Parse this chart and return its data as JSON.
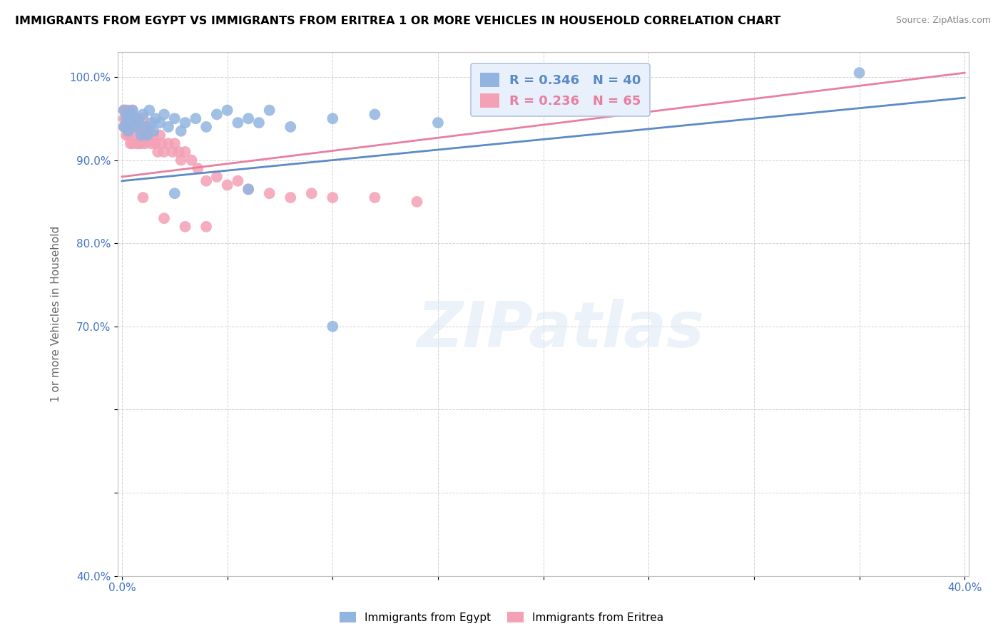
{
  "title": "IMMIGRANTS FROM EGYPT VS IMMIGRANTS FROM ERITREA 1 OR MORE VEHICLES IN HOUSEHOLD CORRELATION CHART",
  "source": "Source: ZipAtlas.com",
  "ylabel": "1 or more Vehicles in Household",
  "xlim": [
    -0.002,
    0.402
  ],
  "ylim": [
    0.4,
    1.03
  ],
  "xticks": [
    0.0,
    0.05,
    0.1,
    0.15,
    0.2,
    0.25,
    0.3,
    0.35,
    0.4
  ],
  "xticklabels": [
    "0.0%",
    "",
    "",
    "",
    "",
    "",
    "",
    "",
    "40.0%"
  ],
  "yticks": [
    0.4,
    0.5,
    0.6,
    0.7,
    0.8,
    0.9,
    1.0
  ],
  "yticklabels": [
    "40.0%",
    "",
    "",
    "70.0%",
    "80.0%",
    "90.0%",
    "100.0%"
  ],
  "egypt_color": "#92b4e0",
  "eritrea_color": "#f4a0b5",
  "egypt_line_color": "#5b8ac7",
  "eritrea_line_color": "#e87fa0",
  "egypt_R": 0.346,
  "egypt_N": 40,
  "eritrea_R": 0.236,
  "eritrea_N": 65,
  "legend_box_color": "#e8f0fb",
  "legend_border_color": "#b0c4de",
  "watermark_text": "ZIPatlas",
  "egypt_legend": "Immigrants from Egypt",
  "eritrea_legend": "Immigrants from Eritrea",
  "egypt_x": [
    0.001,
    0.001,
    0.002,
    0.003,
    0.003,
    0.004,
    0.005,
    0.006,
    0.007,
    0.008,
    0.009,
    0.01,
    0.011,
    0.012,
    0.013,
    0.014,
    0.015,
    0.016,
    0.018,
    0.02,
    0.022,
    0.025,
    0.028,
    0.03,
    0.035,
    0.04,
    0.045,
    0.05,
    0.055,
    0.06,
    0.065,
    0.07,
    0.08,
    0.1,
    0.12,
    0.15,
    0.025,
    0.06,
    0.1,
    0.35
  ],
  "egypt_y": [
    0.94,
    0.96,
    0.95,
    0.945,
    0.935,
    0.955,
    0.96,
    0.94,
    0.95,
    0.945,
    0.93,
    0.955,
    0.94,
    0.93,
    0.96,
    0.945,
    0.935,
    0.95,
    0.945,
    0.955,
    0.94,
    0.95,
    0.935,
    0.945,
    0.95,
    0.94,
    0.955,
    0.96,
    0.945,
    0.95,
    0.945,
    0.96,
    0.94,
    0.95,
    0.955,
    0.945,
    0.86,
    0.865,
    0.7,
    1.005
  ],
  "eritrea_x": [
    0.001,
    0.001,
    0.001,
    0.002,
    0.002,
    0.002,
    0.002,
    0.003,
    0.003,
    0.003,
    0.003,
    0.004,
    0.004,
    0.004,
    0.005,
    0.005,
    0.005,
    0.005,
    0.006,
    0.006,
    0.006,
    0.007,
    0.007,
    0.007,
    0.008,
    0.008,
    0.008,
    0.009,
    0.009,
    0.01,
    0.01,
    0.011,
    0.011,
    0.012,
    0.013,
    0.014,
    0.015,
    0.016,
    0.017,
    0.018,
    0.019,
    0.02,
    0.022,
    0.024,
    0.025,
    0.027,
    0.028,
    0.03,
    0.033,
    0.036,
    0.04,
    0.045,
    0.05,
    0.055,
    0.06,
    0.07,
    0.08,
    0.09,
    0.1,
    0.12,
    0.14,
    0.01,
    0.02,
    0.03,
    0.04
  ],
  "eritrea_y": [
    0.96,
    0.95,
    0.94,
    0.96,
    0.95,
    0.94,
    0.93,
    0.96,
    0.95,
    0.94,
    0.93,
    0.95,
    0.94,
    0.92,
    0.96,
    0.95,
    0.94,
    0.92,
    0.95,
    0.94,
    0.93,
    0.95,
    0.94,
    0.92,
    0.95,
    0.94,
    0.92,
    0.94,
    0.92,
    0.95,
    0.93,
    0.94,
    0.92,
    0.93,
    0.94,
    0.92,
    0.93,
    0.92,
    0.91,
    0.93,
    0.92,
    0.91,
    0.92,
    0.91,
    0.92,
    0.91,
    0.9,
    0.91,
    0.9,
    0.89,
    0.875,
    0.88,
    0.87,
    0.875,
    0.865,
    0.86,
    0.855,
    0.86,
    0.855,
    0.855,
    0.85,
    0.855,
    0.83,
    0.82,
    0.82
  ]
}
